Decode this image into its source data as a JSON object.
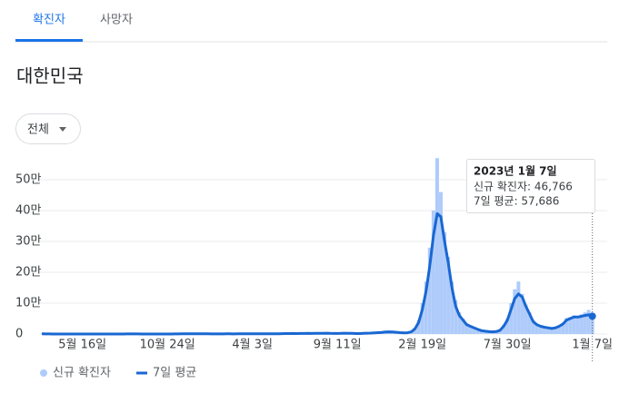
{
  "tabs": [
    {
      "label": "확진자",
      "selected": true
    },
    {
      "label": "사망자",
      "selected": false
    }
  ],
  "region": "대한민국",
  "filter": "전체",
  "chart_data": {
    "type": "bar",
    "categories": [
      null,
      null,
      null,
      null,
      null,
      null,
      null,
      null,
      null,
      null,
      null,
      "5월 16일",
      null,
      null,
      null,
      null,
      null,
      null,
      null,
      null,
      null,
      null,
      null,
      null,
      null,
      null,
      null,
      null,
      null,
      null,
      null,
      null,
      null,
      null,
      "10월 24일",
      null,
      null,
      null,
      null,
      null,
      null,
      null,
      null,
      null,
      null,
      null,
      null,
      null,
      null,
      null,
      null,
      null,
      null,
      null,
      null,
      null,
      null,
      "4월 3일",
      null,
      null,
      null,
      null,
      null,
      null,
      null,
      null,
      null,
      null,
      null,
      null,
      null,
      null,
      null,
      null,
      null,
      null,
      null,
      null,
      null,
      null,
      "9월 11일",
      null,
      null,
      null,
      null,
      null,
      null,
      null,
      null,
      null,
      null,
      null,
      null,
      null,
      null,
      null,
      null,
      null,
      null,
      null,
      null,
      null,
      null,
      "2월 19일",
      null,
      null,
      null,
      null,
      null,
      null,
      null,
      null,
      null,
      null,
      null,
      null,
      null,
      null,
      null,
      null,
      null,
      null,
      null,
      null,
      null,
      null,
      "7월 30일",
      null,
      null,
      null,
      null,
      null,
      null,
      null,
      null,
      null,
      null,
      null,
      null,
      null,
      null,
      null,
      null,
      null,
      null,
      null,
      null,
      null,
      null,
      "1월 7일"
    ],
    "series": [
      {
        "name": "신규 확진자",
        "type": "bar",
        "color": "#aecbfa",
        "values": [
          600,
          250,
          120,
          90,
          40,
          30,
          25,
          20,
          35,
          50,
          30,
          45,
          35,
          55,
          45,
          40,
          35,
          60,
          45,
          55,
          35,
          45,
          70,
          250,
          330,
          220,
          130,
          110,
          90,
          75,
          60,
          90,
          110,
          95,
          110,
          130,
          230,
          330,
          500,
          650,
          900,
          1050,
          1020,
          850,
          650,
          480,
          420,
          380,
          410,
          420,
          470,
          430,
          420,
          470,
          520,
          560,
          620,
          630,
          670,
          640,
          580,
          560,
          540,
          520,
          650,
          1300,
          1600,
          1700,
          1800,
          1550,
          1900,
          2000,
          2100,
          1700,
          2100,
          2300,
          2400,
          2600,
          1900,
          1600,
          2000,
          2300,
          2700,
          2100,
          1900,
          1500,
          1300,
          2100,
          2600,
          3200,
          4000,
          4900,
          5300,
          7000,
          7200,
          6200,
          5200,
          4200,
          3300,
          4400,
          7600,
          20000,
          45000,
          100000,
          170000,
          280000,
          400000,
          570000,
          460000,
          330000,
          250000,
          170000,
          110000,
          70000,
          50000,
          35000,
          28000,
          22000,
          16000,
          12000,
          9500,
          7800,
          7200,
          8800,
          14000,
          30000,
          50000,
          100000,
          145000,
          170000,
          130000,
          95000,
          70000,
          45000,
          32000,
          27000,
          23000,
          21000,
          17000,
          22000,
          27000,
          35000,
          52000,
          55000,
          60000,
          58000,
          64000,
          70000,
          78000,
          46766
        ]
      },
      {
        "name": "7일 평균",
        "type": "line",
        "color": "#1967d2",
        "values": [
          500,
          300,
          150,
          80,
          50,
          30,
          20,
          20,
          30,
          40,
          30,
          40,
          40,
          50,
          50,
          40,
          40,
          50,
          50,
          50,
          40,
          40,
          60,
          200,
          300,
          250,
          150,
          100,
          100,
          80,
          70,
          80,
          100,
          100,
          100,
          120,
          200,
          300,
          450,
          600,
          800,
          1000,
          1000,
          900,
          700,
          500,
          400,
          400,
          400,
          400,
          450,
          450,
          400,
          450,
          500,
          550,
          600,
          600,
          650,
          650,
          600,
          550,
          550,
          500,
          600,
          1200,
          1500,
          1600,
          1700,
          1600,
          1800,
          1900,
          2000,
          1800,
          2000,
          2200,
          2300,
          2500,
          2000,
          1700,
          1900,
          2200,
          2500,
          2200,
          2000,
          1600,
          1400,
          2000,
          2500,
          3000,
          3800,
          4500,
          5000,
          6500,
          7000,
          6500,
          5500,
          4500,
          3500,
          4000,
          7000,
          17000,
          38000,
          80000,
          140000,
          220000,
          320000,
          390000,
          380000,
          300000,
          230000,
          150000,
          90000,
          60000,
          45000,
          30000,
          25000,
          20000,
          15000,
          11000,
          9000,
          7500,
          7000,
          8000,
          12000,
          25000,
          45000,
          80000,
          115000,
          130000,
          120000,
          90000,
          65000,
          40000,
          30000,
          25000,
          22000,
          20000,
          18000,
          20000,
          25000,
          32000,
          45000,
          50000,
          55000,
          55000,
          57000,
          60000,
          62000,
          57686
        ]
      }
    ],
    "ylim": [
      0,
      580000
    ],
    "yticks": [
      0,
      {
        "value": 100000,
        "label": "10만"
      },
      {
        "value": 200000,
        "label": "20만"
      },
      {
        "value": 300000,
        "label": "30만"
      },
      {
        "value": 400000,
        "label": "40만"
      },
      {
        "value": 500000,
        "label": "50만"
      }
    ],
    "grid": true,
    "tooltip": {
      "title": "2023년 1월 7일",
      "lines": [
        "신규 확진자: 46,766",
        "7일 평균: 57,686"
      ]
    }
  }
}
